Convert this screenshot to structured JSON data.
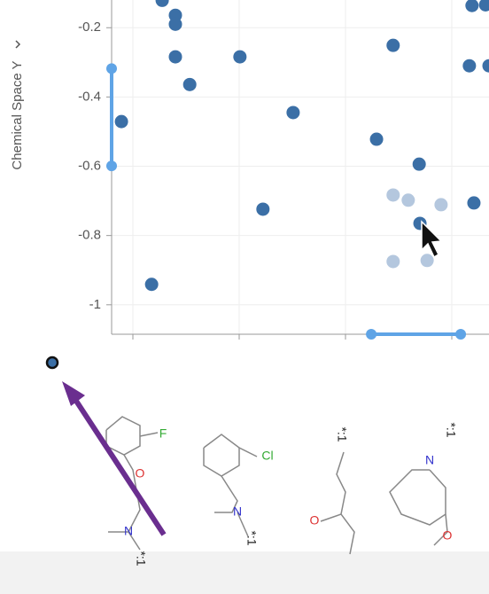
{
  "chart_data": {
    "type": "scatter",
    "y_label": "Chemical Space Y",
    "xlim": [
      0,
      1
    ],
    "ylim": [
      -1.085,
      -0.12
    ],
    "yticks": [
      -0.2,
      -0.4,
      -0.6,
      -0.8,
      -1
    ],
    "grid": true,
    "series": [
      {
        "color": "#3b6fa6",
        "x": [
          0.134,
          0.169,
          0.169,
          0.169,
          0.207,
          0.34,
          0.026,
          0.481,
          0.746,
          0.702,
          0.815,
          0.401,
          0.106,
          0.955,
          0.991,
          0.948,
          1.0,
          0.96,
          0.817
        ],
        "y": [
          -0.121,
          -0.164,
          -0.19,
          -0.284,
          -0.364,
          -0.284,
          -0.471,
          -0.445,
          -0.251,
          -0.522,
          -0.594,
          -0.724,
          -0.941,
          -0.136,
          -0.134,
          -0.31,
          -0.31,
          -0.706,
          -0.765
        ]
      },
      {
        "color": "#b4c7de",
        "x": [
          0.746,
          0.786,
          0.873,
          0.746,
          0.836
        ],
        "y": [
          -0.683,
          -0.698,
          -0.711,
          -0.875,
          -0.872
        ]
      }
    ],
    "y_brush": [
      -0.318,
      -0.599
    ],
    "x_brush": [
      0.688,
      0.925
    ]
  },
  "molecules": [
    {
      "labels": [
        "F",
        "O",
        "N",
        "*:1"
      ]
    },
    {
      "labels": [
        "Cl",
        "N",
        "*:1"
      ]
    },
    {
      "labels": [
        "*:1",
        "O"
      ]
    },
    {
      "labels": [
        "*:1",
        "N",
        "O"
      ]
    }
  ]
}
